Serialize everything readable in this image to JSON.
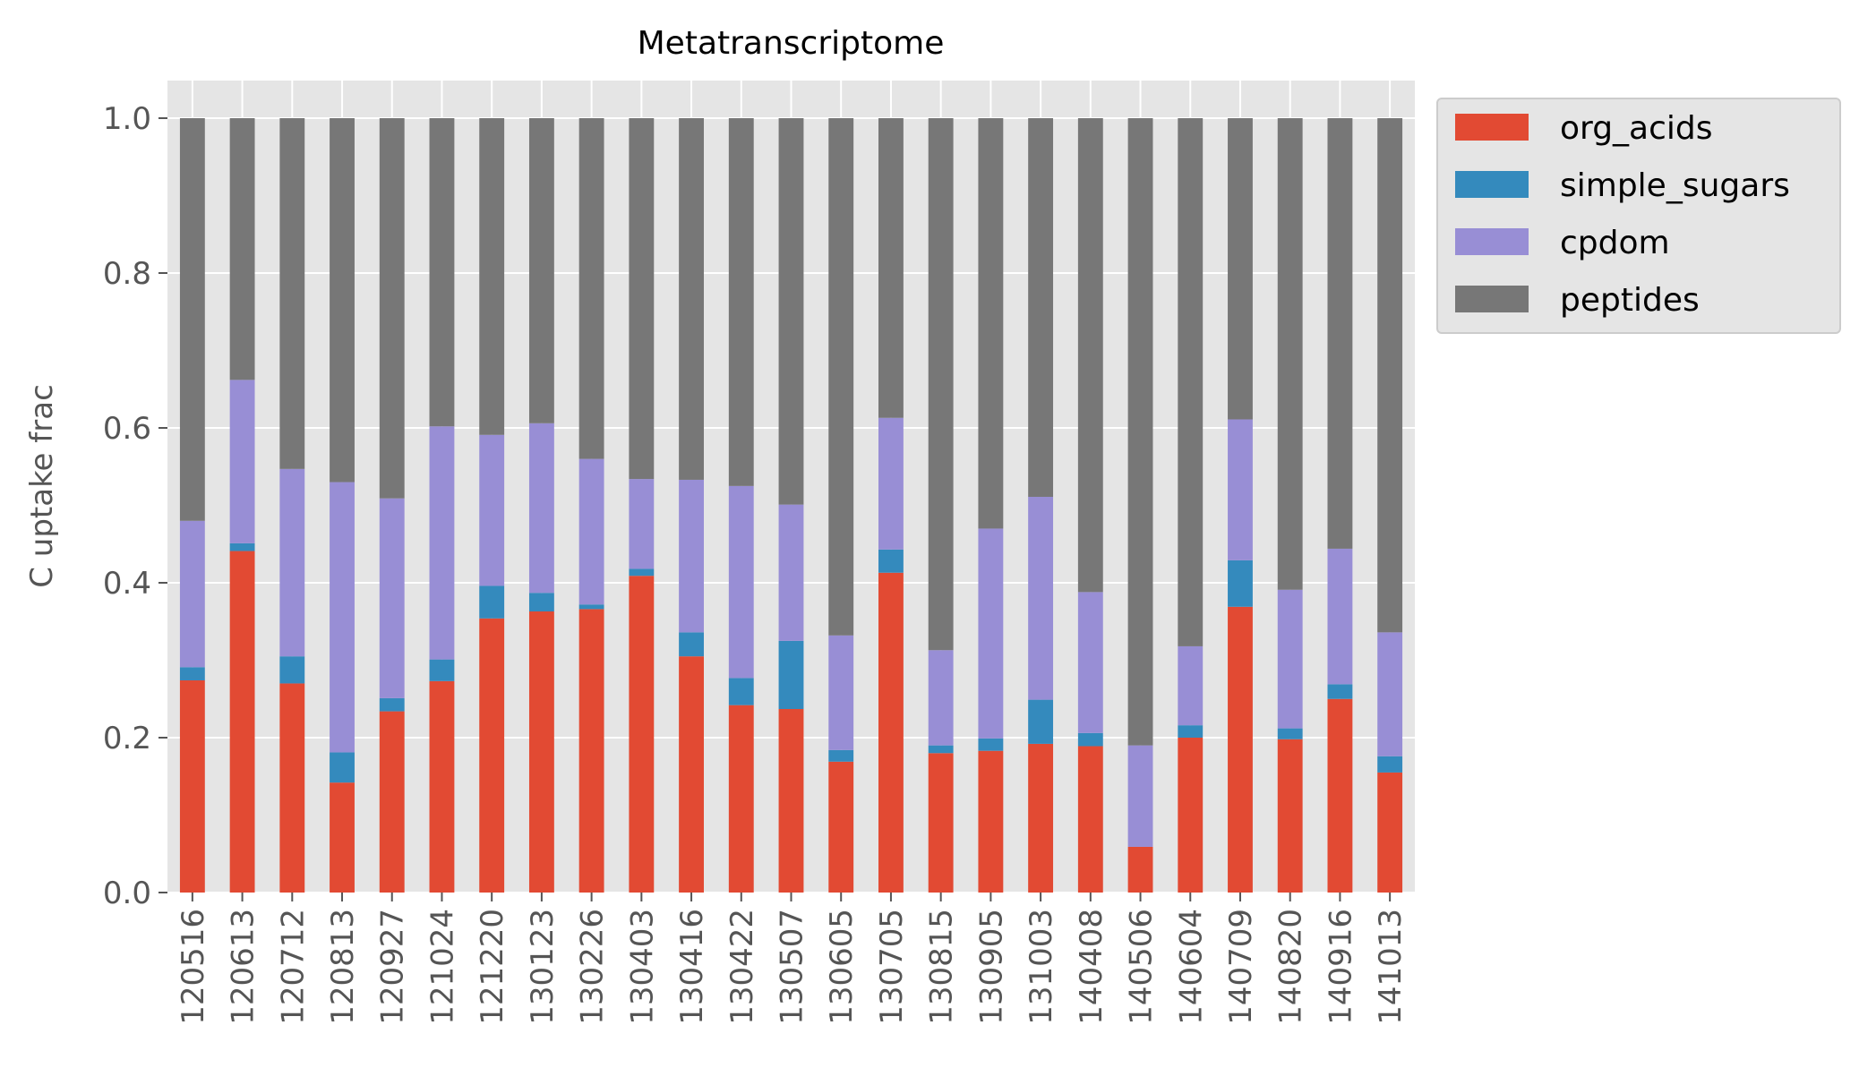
{
  "chart_data": {
    "type": "bar",
    "stacked": true,
    "title": "Metatranscriptome",
    "xlabel": "",
    "ylabel": "C uptake frac",
    "ylim": [
      0,
      1.05
    ],
    "yticks": [
      "0.0",
      "0.2",
      "0.4",
      "0.6",
      "0.8",
      "1.0"
    ],
    "grid": true,
    "legend_position": "outside-top-right",
    "categories": [
      "120516",
      "120613",
      "120712",
      "120813",
      "120927",
      "121024",
      "121220",
      "130123",
      "130226",
      "130403",
      "130416",
      "130422",
      "130507",
      "130605",
      "130705",
      "130815",
      "130905",
      "131003",
      "140408",
      "140506",
      "140604",
      "140709",
      "140820",
      "140916",
      "141013"
    ],
    "series": [
      {
        "name": "org_acids",
        "color": "#E24A33",
        "values": [
          0.274,
          0.441,
          0.27,
          0.142,
          0.234,
          0.273,
          0.354,
          0.363,
          0.366,
          0.409,
          0.305,
          0.242,
          0.237,
          0.169,
          0.413,
          0.18,
          0.183,
          0.192,
          0.189,
          0.059,
          0.2,
          0.369,
          0.198,
          0.25,
          0.155
        ]
      },
      {
        "name": "simple_sugars",
        "color": "#348ABD",
        "values": [
          0.017,
          0.01,
          0.035,
          0.039,
          0.017,
          0.028,
          0.042,
          0.024,
          0.006,
          0.009,
          0.031,
          0.035,
          0.088,
          0.015,
          0.03,
          0.01,
          0.016,
          0.057,
          0.017,
          0.0,
          0.016,
          0.06,
          0.014,
          0.019,
          0.021
        ]
      },
      {
        "name": "cpdom",
        "color": "#988ED5",
        "values": [
          0.189,
          0.211,
          0.242,
          0.349,
          0.258,
          0.301,
          0.195,
          0.219,
          0.188,
          0.116,
          0.197,
          0.248,
          0.176,
          0.148,
          0.17,
          0.123,
          0.271,
          0.262,
          0.182,
          0.131,
          0.102,
          0.182,
          0.179,
          0.175,
          0.16
        ]
      },
      {
        "name": "peptides",
        "color": "#777777",
        "values": [
          0.52,
          0.338,
          0.453,
          0.47,
          0.491,
          0.398,
          0.409,
          0.394,
          0.44,
          0.466,
          0.467,
          0.475,
          0.499,
          0.668,
          0.387,
          0.687,
          0.53,
          0.489,
          0.612,
          0.81,
          0.682,
          0.389,
          0.609,
          0.556,
          0.664
        ]
      }
    ]
  }
}
